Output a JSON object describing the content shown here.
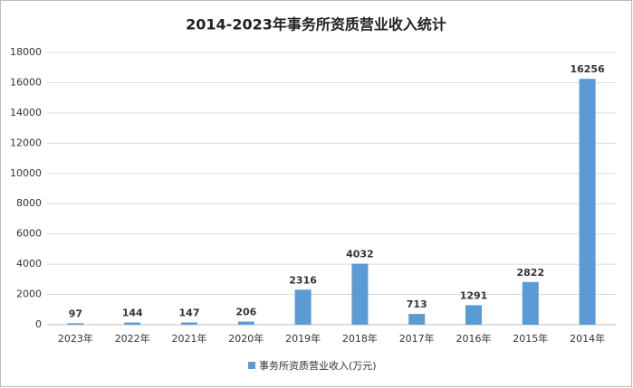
{
  "chart_data": {
    "type": "bar",
    "title": "2014-2023年事务所资质营业收入统计",
    "categories": [
      "2023年",
      "2022年",
      "2021年",
      "2020年",
      "2019年",
      "2018年",
      "2017年",
      "2016年",
      "2015年",
      "2014年"
    ],
    "series": [
      {
        "name": "事务所资质营业收入(万元)",
        "color": "#5b9bd5",
        "values": [
          97,
          144,
          147,
          206,
          2316,
          4032,
          713,
          1291,
          2822,
          16256
        ]
      }
    ],
    "ylim": [
      0,
      18000
    ],
    "yticks": [
      0,
      2000,
      4000,
      6000,
      8000,
      10000,
      12000,
      14000,
      16000,
      18000
    ],
    "grid": true,
    "legend": "bottom"
  }
}
